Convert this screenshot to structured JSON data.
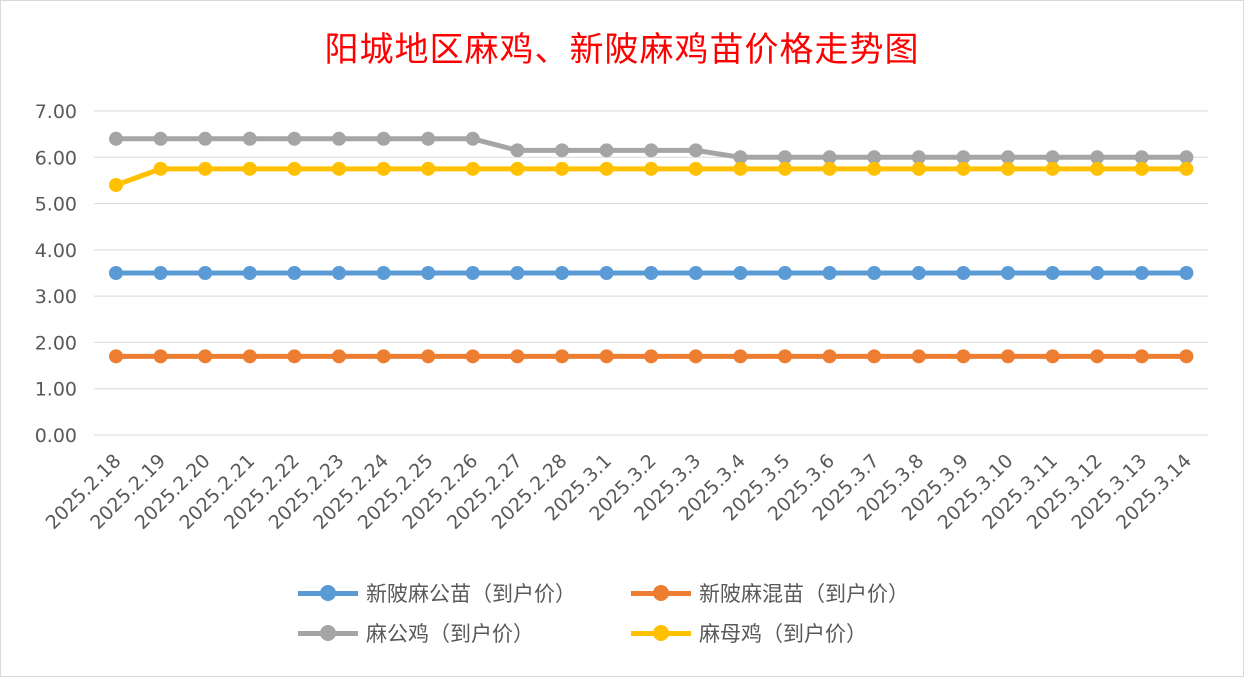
{
  "chart_data": {
    "type": "line",
    "title": "阳城地区麻鸡、新陂麻鸡苗价格走势图",
    "xlabel": "",
    "ylabel": "",
    "ylim": [
      0,
      7
    ],
    "y_ticks": [
      "0.00",
      "1.00",
      "2.00",
      "3.00",
      "4.00",
      "5.00",
      "6.00",
      "7.00"
    ],
    "grid": true,
    "legend_position": "bottom",
    "x": [
      "2025.2.18",
      "2025.2.19",
      "2025.2.20",
      "2025.2.21",
      "2025.2.22",
      "2025.2.23",
      "2025.2.24",
      "2025.2.25",
      "2025.2.26",
      "2025.2.27",
      "2025.2.28",
      "2025.3.1",
      "2025.3.2",
      "2025.3.3",
      "2025.3.4",
      "2025.3.5",
      "2025.3.6",
      "2025.3.7",
      "2025.3.8",
      "2025.3.9",
      "2025.3.10",
      "2025.3.11",
      "2025.3.12",
      "2025.3.13",
      "2025.3.14"
    ],
    "series": [
      {
        "name": "新陂麻公苗（到户价）",
        "color": "#5b9bd5",
        "values": [
          3.5,
          3.5,
          3.5,
          3.5,
          3.5,
          3.5,
          3.5,
          3.5,
          3.5,
          3.5,
          3.5,
          3.5,
          3.5,
          3.5,
          3.5,
          3.5,
          3.5,
          3.5,
          3.5,
          3.5,
          3.5,
          3.5,
          3.5,
          3.5,
          3.5
        ]
      },
      {
        "name": "新陂麻混苗（到户价）",
        "color": "#ed7d31",
        "values": [
          1.7,
          1.7,
          1.7,
          1.7,
          1.7,
          1.7,
          1.7,
          1.7,
          1.7,
          1.7,
          1.7,
          1.7,
          1.7,
          1.7,
          1.7,
          1.7,
          1.7,
          1.7,
          1.7,
          1.7,
          1.7,
          1.7,
          1.7,
          1.7,
          1.7
        ]
      },
      {
        "name": "麻公鸡（到户价）",
        "color": "#a5a5a5",
        "values": [
          6.4,
          6.4,
          6.4,
          6.4,
          6.4,
          6.4,
          6.4,
          6.4,
          6.4,
          6.15,
          6.15,
          6.15,
          6.15,
          6.15,
          6.0,
          6.0,
          6.0,
          6.0,
          6.0,
          6.0,
          6.0,
          6.0,
          6.0,
          6.0,
          6.0
        ]
      },
      {
        "name": "麻母鸡（到户价）",
        "color": "#ffc000",
        "values": [
          5.4,
          5.75,
          5.75,
          5.75,
          5.75,
          5.75,
          5.75,
          5.75,
          5.75,
          5.75,
          5.75,
          5.75,
          5.75,
          5.75,
          5.75,
          5.75,
          5.75,
          5.75,
          5.75,
          5.75,
          5.75,
          5.75,
          5.75,
          5.75,
          5.75
        ]
      }
    ]
  },
  "colors": {
    "title": "#ff0000",
    "gridline": "#d9d9d9",
    "axis_text": "#595959"
  }
}
